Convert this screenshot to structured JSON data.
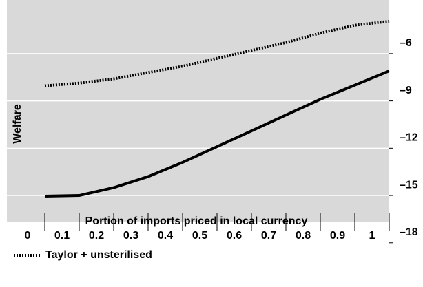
{
  "chart_data": {
    "type": "line",
    "y_label": "Welfare",
    "x_label": "Portion of imports priced in local currency",
    "x": [
      0,
      0.1,
      0.2,
      0.3,
      0.4,
      0.5,
      0.6,
      0.7,
      0.8,
      0.9,
      1
    ],
    "xlim": [
      -0.11,
      1
    ],
    "xticks": [
      0,
      0.1,
      0.2,
      0.3,
      0.4,
      0.5,
      0.6,
      0.7,
      0.8,
      0.9,
      1
    ],
    "ylim": [
      -16.7,
      -2.6
    ],
    "yticks": [
      {
        "value": -6,
        "label": "–6"
      },
      {
        "value": -9,
        "label": "–9"
      },
      {
        "value": -12,
        "label": "–12"
      },
      {
        "value": -15,
        "label": "–15"
      },
      {
        "value": -18,
        "label": "–18"
      }
    ],
    "grid": true,
    "series": [
      {
        "name": "Taylor + unsterilised",
        "color": "#000000",
        "dash": "dotted",
        "values": [
          -8.04,
          -7.87,
          -7.6,
          -7.2,
          -6.8,
          -6.3,
          -5.8,
          -5.3,
          -4.7,
          -4.2,
          -3.95
        ]
      },
      {
        "color": "#000000",
        "dash": "solid",
        "values": [
          -15.04,
          -15.0,
          -14.5,
          -13.8,
          -12.9,
          -11.9,
          -10.9,
          -9.9,
          -8.9,
          -8.0,
          -7.1
        ]
      }
    ]
  }
}
